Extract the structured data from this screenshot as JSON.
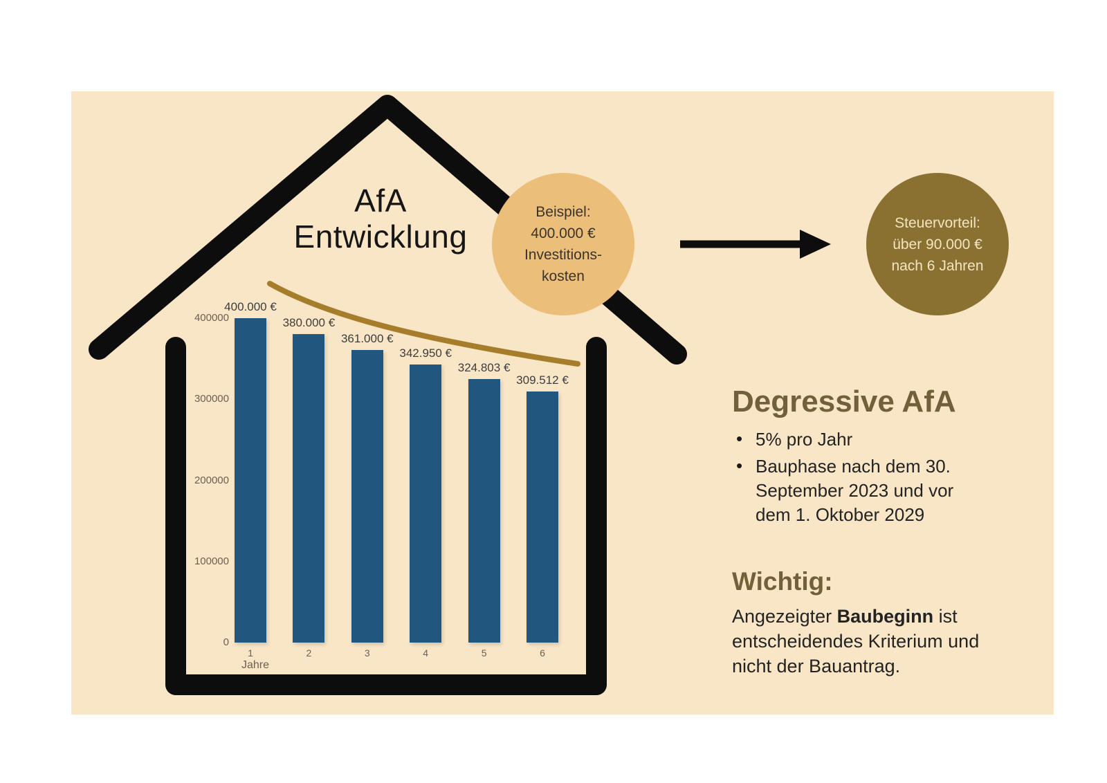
{
  "colors": {
    "page_bg": "#ffffff",
    "panel_bg": "#F9E6C6",
    "house_outline": "#0d0d0d",
    "bar": "#21567F",
    "trend_curve": "#A67D2A",
    "example_circle_bg": "#EBBE7A",
    "example_circle_text": "#3b332a",
    "benefit_circle_bg": "#8A7031",
    "benefit_circle_text": "#F4E5C1",
    "heading": "#71603A",
    "body_text": "#232323",
    "axis_text": "#6a6052",
    "data_label_text": "#3d3d3d"
  },
  "title": {
    "line1": "AfA",
    "line2": "Entwicklung"
  },
  "example_circle": {
    "lines": [
      "Beispiel:",
      "400.000 €",
      "Investitions-",
      "kosten"
    ]
  },
  "benefit_circle": {
    "lines": [
      "Steuervorteil:",
      "über 90.000 €",
      "nach 6 Jahren"
    ]
  },
  "chart_data": {
    "type": "bar",
    "title": "",
    "categories": [
      "1",
      "2",
      "3",
      "4",
      "5",
      "6"
    ],
    "values": [
      400000,
      380000,
      361000,
      342950,
      324803,
      309512
    ],
    "bar_labels": [
      "400.000 €",
      "380.000 €",
      "361.000 €",
      "342.950 €",
      "324.803 €",
      "309.512 €"
    ],
    "xlabel": "Jahre",
    "ylabel": "",
    "yticks": [
      0,
      100000,
      200000,
      300000,
      400000
    ],
    "ytick_labels": [
      "0",
      "100000",
      "200000",
      "300000",
      "400000"
    ],
    "ylim": [
      0,
      400000
    ],
    "grid": false,
    "legend": false,
    "annotations": "gold declining trend curve above bars"
  },
  "sections": {
    "degressive": {
      "heading": "Degressive AfA",
      "bullets": [
        "5% pro Jahr",
        "Bauphase nach dem 30. September 2023 und vor dem 1. Oktober 2029"
      ]
    },
    "wichtig": {
      "heading": "Wichtig:",
      "body_prefix": "Angezeigter ",
      "body_bold": "Baubeginn",
      "body_suffix": " ist entscheidendes Kriterium und nicht der Bauantrag."
    }
  }
}
